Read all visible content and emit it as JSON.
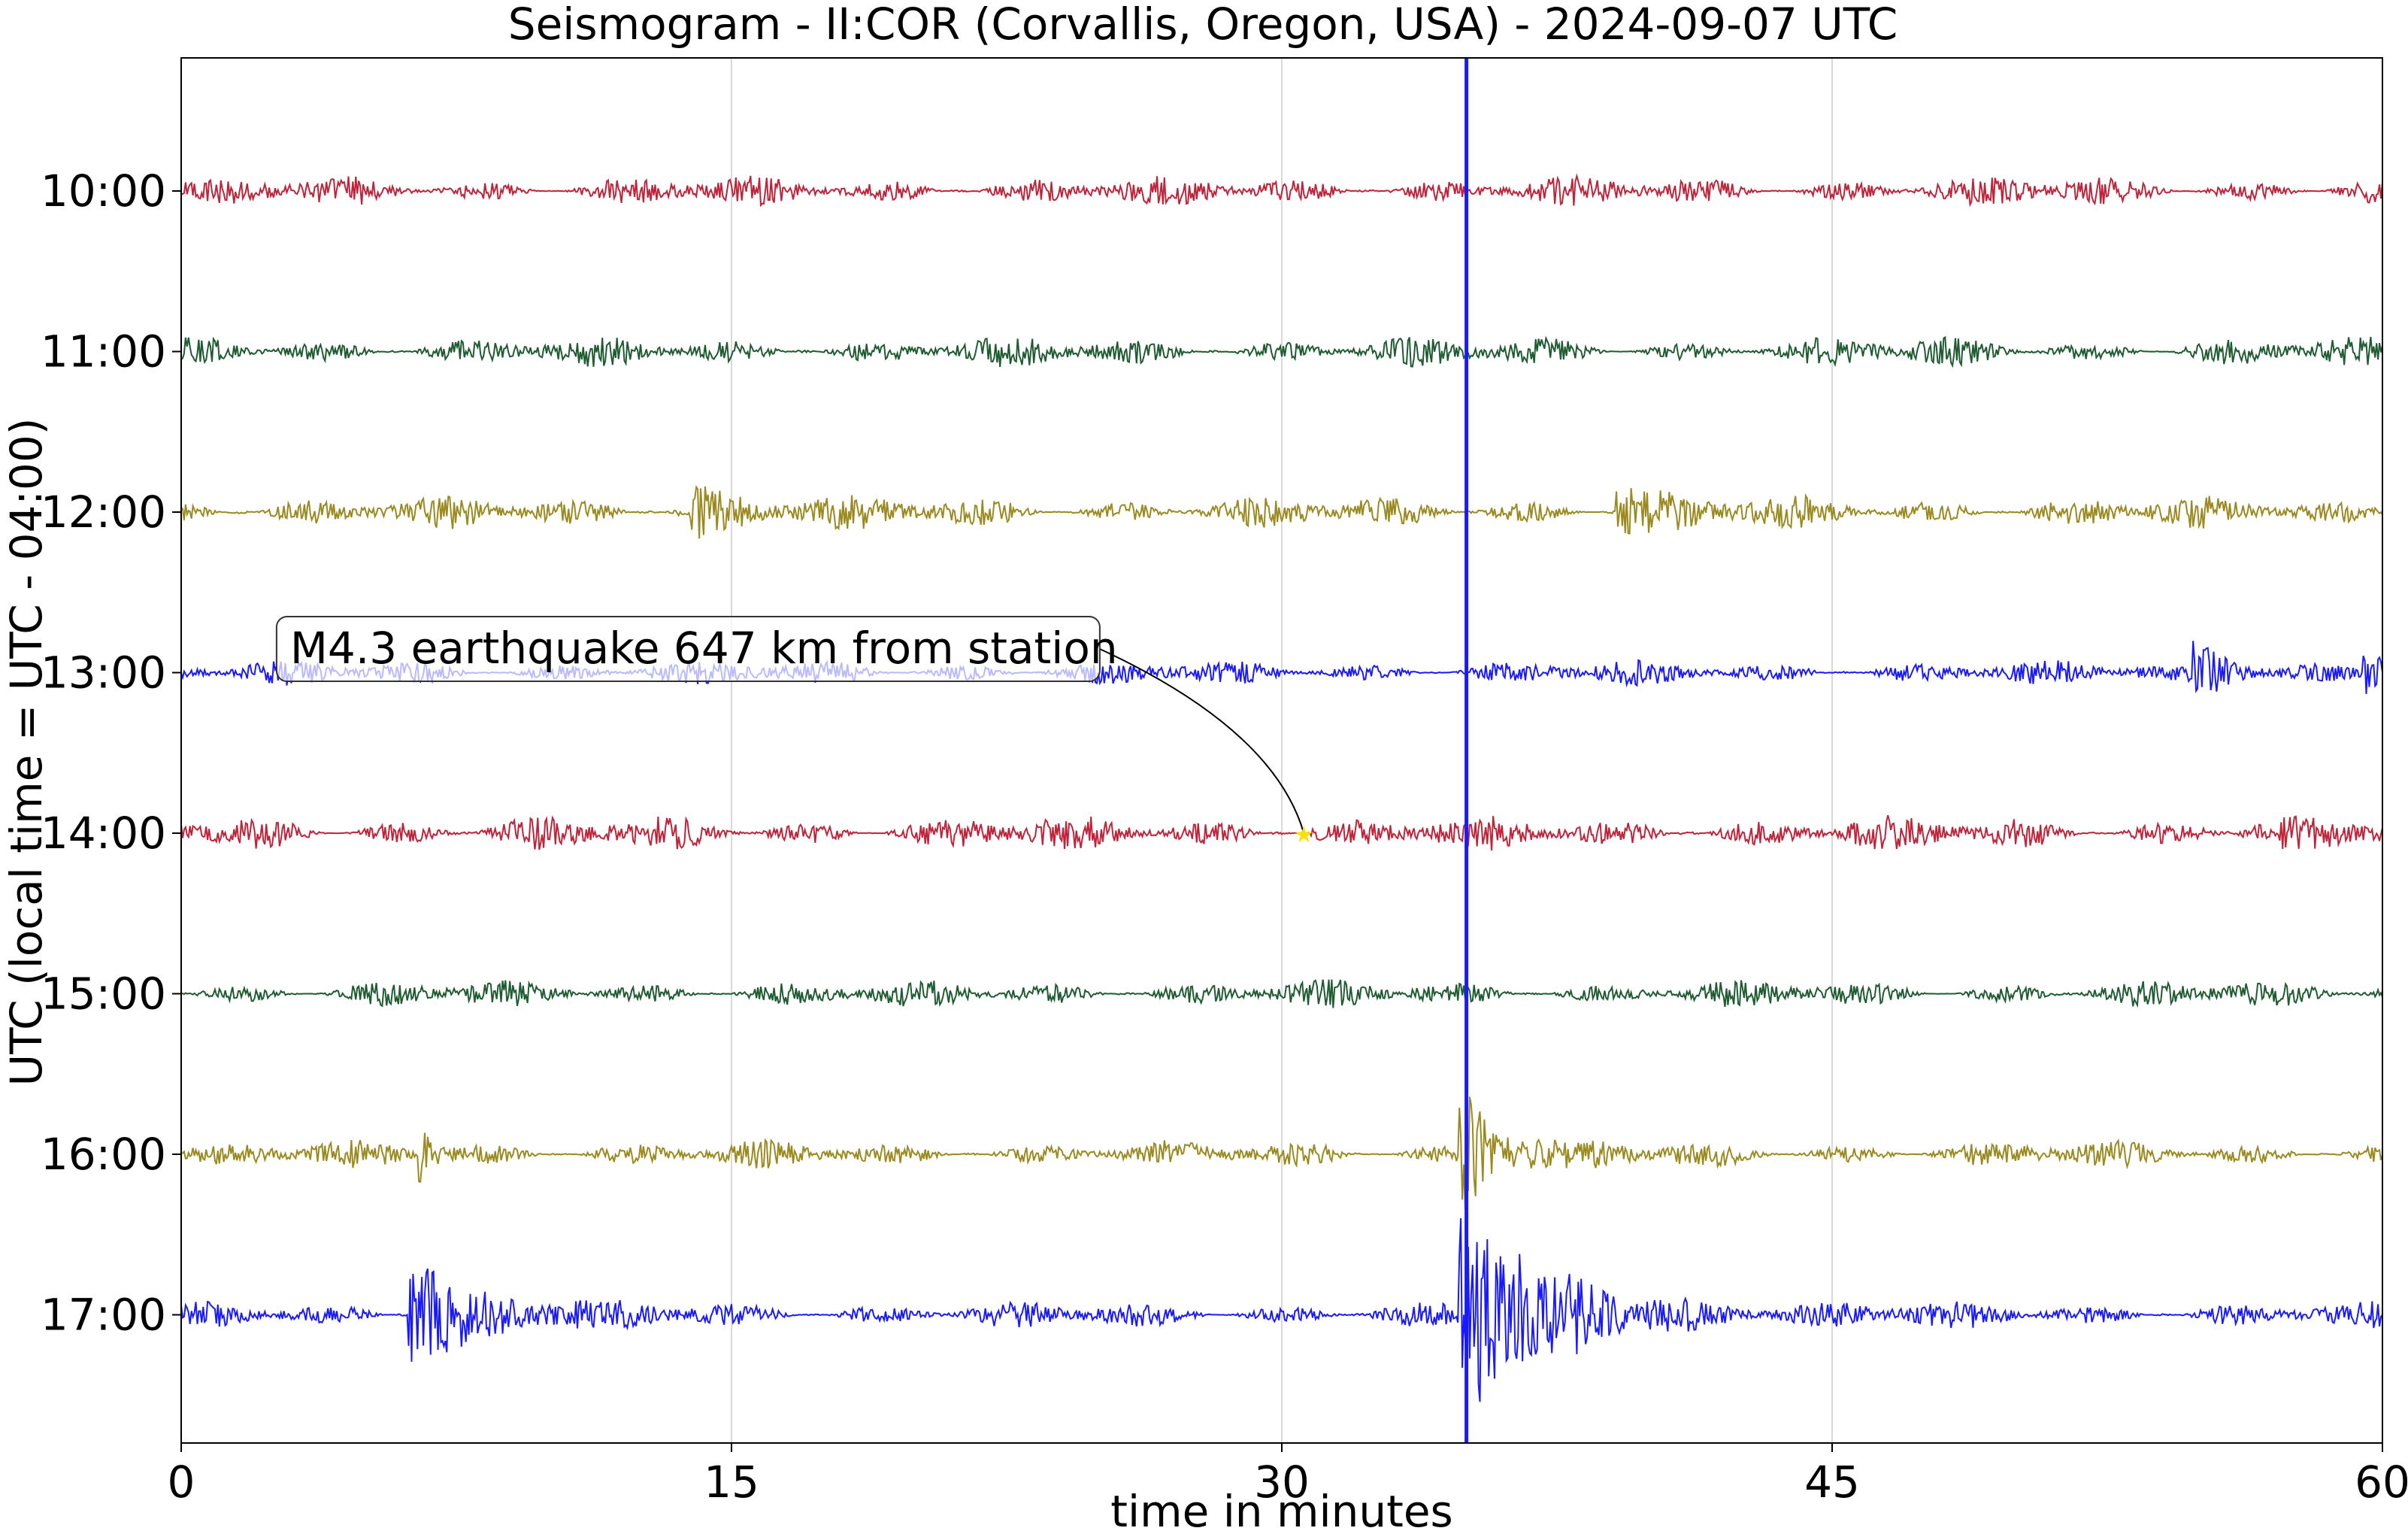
{
  "chart_data": {
    "type": "line",
    "title": "Seismogram - II:COR (Corvallis, Oregon, USA) - 2024-09-07 UTC",
    "xlabel": "time in minutes",
    "ylabel": "UTC (local time = UTC - 04:00)",
    "xlim": [
      0,
      60
    ],
    "x_ticks": [
      0,
      15,
      30,
      45,
      60
    ],
    "x_tick_labels": [
      "0",
      "15",
      "30",
      "45",
      "60"
    ],
    "grid": "vertical",
    "rows": [
      {
        "label": "10:00",
        "color": "#c0243a",
        "noise": 0.55,
        "events": []
      },
      {
        "label": "11:00",
        "color": "#1f5c32",
        "noise": 0.55,
        "events": []
      },
      {
        "label": "12:00",
        "color": "#9b8a20",
        "noise": 0.6,
        "events": [
          {
            "minute": 14,
            "amp": 1.0,
            "dur": 1.2
          },
          {
            "minute": 39.2,
            "amp": 1.0,
            "dur": 1.0
          }
        ]
      },
      {
        "label": "13:00",
        "color": "#1a1aff",
        "noise": 0.45,
        "events": [
          {
            "minute": 54.9,
            "amp": 1.3,
            "dur": 1.0
          },
          {
            "minute": 59.5,
            "amp": 0.9,
            "dur": 1.0
          }
        ]
      },
      {
        "label": "14:00",
        "color": "#c0243a",
        "noise": 0.65,
        "events": []
      },
      {
        "label": "15:00",
        "color": "#1f5c32",
        "noise": 0.5,
        "events": []
      },
      {
        "label": "16:00",
        "color": "#9b8a20",
        "noise": 0.5,
        "events": [
          {
            "minute": 6.5,
            "amp": 1.2,
            "dur": 0.4
          },
          {
            "minute": 34.9,
            "amp": 3.0,
            "dur": 1.0
          }
        ]
      },
      {
        "label": "17:00",
        "color": "#1a1aff",
        "noise": 0.5,
        "events": [
          {
            "minute": 6.3,
            "amp": 2.6,
            "dur": 1.6
          },
          {
            "minute": 34.9,
            "amp": 4.5,
            "dur": 2.5
          }
        ]
      }
    ],
    "big_spike": {
      "minute": 34.95,
      "color": "#1a1aff"
    },
    "annotation": {
      "text": "M4.3 earthquake 647 km from station",
      "row_label": "14:00",
      "minute": 30.6,
      "marker_color": "#ffe000"
    }
  }
}
